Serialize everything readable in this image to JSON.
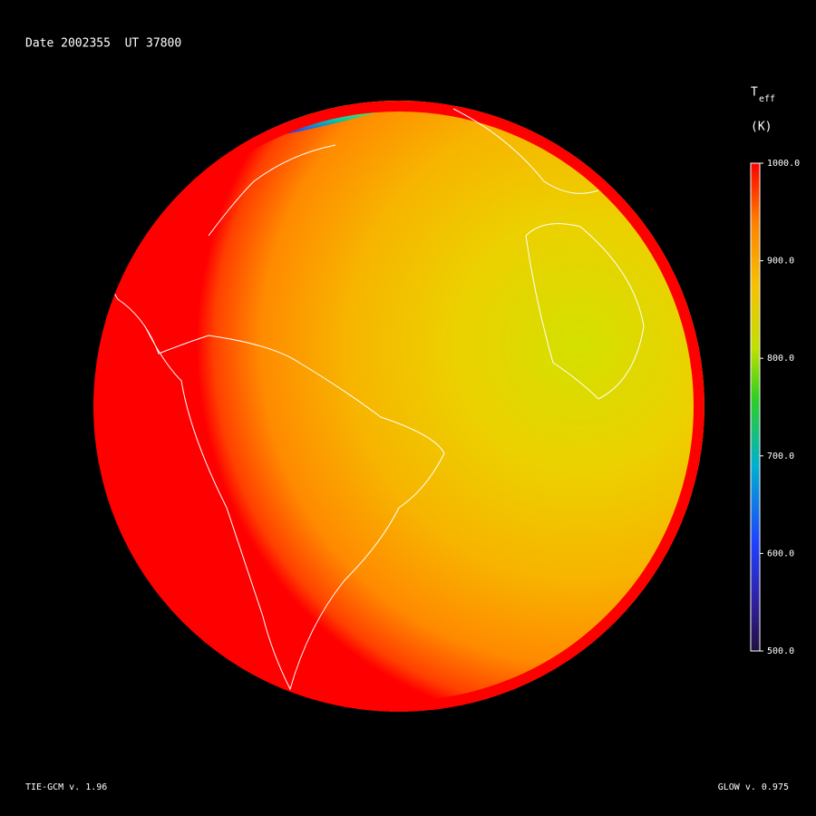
{
  "header": {
    "title": "Date 2002355  UT 37800"
  },
  "colorbar": {
    "symbol": "T",
    "subscript": "eff",
    "unit": "(K)",
    "range": [
      500,
      1000
    ],
    "ticks": [
      {
        "value": 1000,
        "label": "1000.0"
      },
      {
        "value": 900,
        "label": "900.0"
      },
      {
        "value": 800,
        "label": "800.0"
      },
      {
        "value": 700,
        "label": "700.0"
      },
      {
        "value": 600,
        "label": "600.0"
      },
      {
        "value": 500,
        "label": "500.0"
      }
    ]
  },
  "footer": {
    "left": "TIE-GCM v. 1.96",
    "right": "GLOW v. 0.975"
  }
}
